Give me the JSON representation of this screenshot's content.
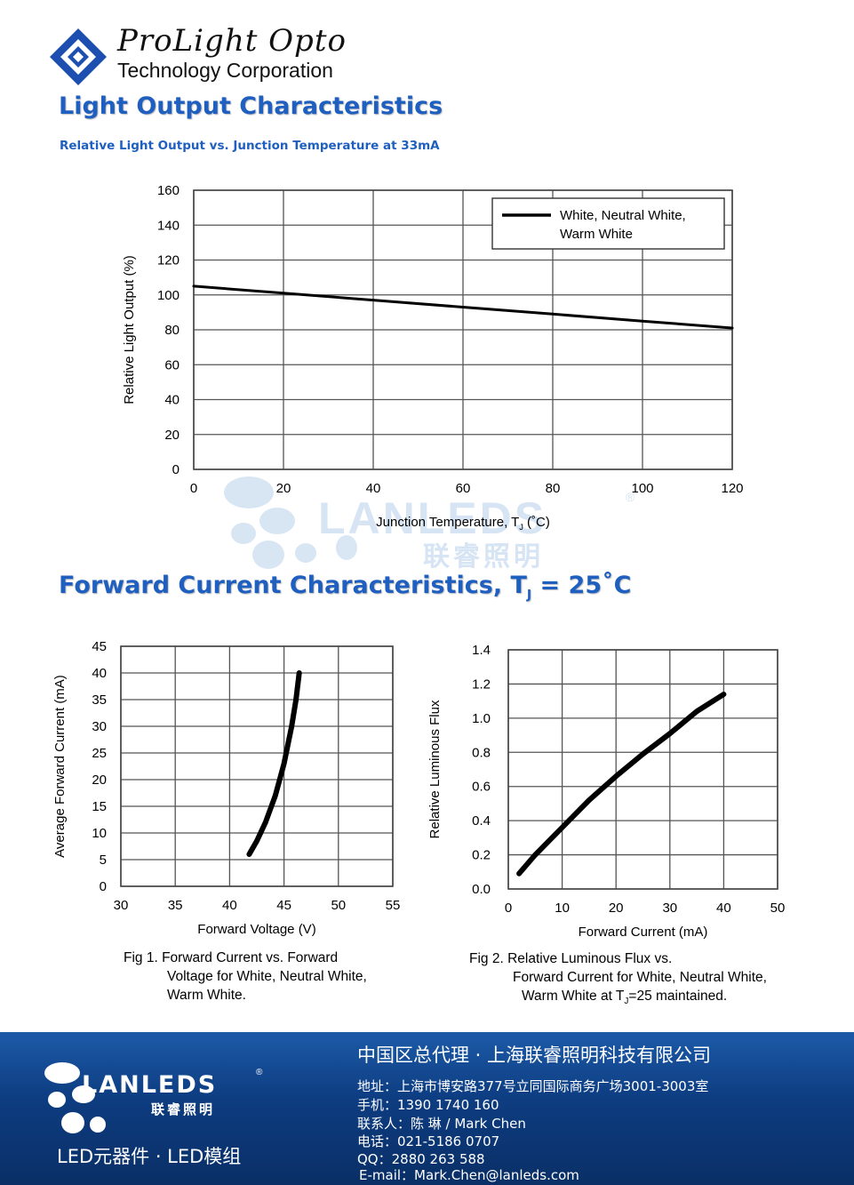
{
  "header": {
    "company_name": "ProLight Opto",
    "company_sub": "Technology Corporation"
  },
  "section1": {
    "title": "Light Output Characteristics",
    "subtitle": "Relative Light Output vs. Junction Temperature at 33mA"
  },
  "section2": {
    "title_main": "Forward Current Characteristics, T",
    "title_sub": "J",
    "title_tail": " = 25˚C"
  },
  "fig1_caption": {
    "line1": "Fig 1. Forward Current vs. Forward",
    "line2": "Voltage for White, Neutral White,",
    "line3": "Warm White."
  },
  "fig2_caption": {
    "line1": "Fig 2. Relative Luminous Flux vs.",
    "line2": "Forward Current for White, Neutral White,",
    "line3_a": "Warm White at T",
    "line3_sub": "J",
    "line3_b": "=25 maintained."
  },
  "watermark": {
    "brand": "LANLEDS",
    "brand_cn": "联睿照明",
    "reg": "®"
  },
  "footer": {
    "brand": "LANLEDS",
    "brand_cn": "联睿照明",
    "reg": "®",
    "tagline": "LED元器件 · LED模组",
    "title": "中国区总代理 · 上海联睿照明科技有限公司",
    "address": "地址：上海市博安路377号立同国际商务广场3001-3003室",
    "mobile": "手机：1390 1740 160",
    "contact": "联系人：陈 琳 / Mark Chen",
    "phone": "电话：021-5186 0707",
    "qq": "QQ：2880 263 588",
    "email": "E-mail：Mark.Chen@lanleds.com"
  },
  "colors": {
    "heading_blue": "#1f5fc0",
    "footer_blue": "#0d3c80",
    "curve": "#000000",
    "grid": "#555555"
  },
  "chart_data": [
    {
      "type": "line",
      "title": "",
      "xlabel_main": "Junction Temperature, T",
      "xlabel_sub": "J",
      "xlabel_tail": " (˚C)",
      "ylabel": "Relative Light Output (%)",
      "xlim": [
        0,
        120
      ],
      "ylim": [
        0,
        160
      ],
      "xticks": [
        "0",
        "20",
        "40",
        "60",
        "80",
        "100",
        "120"
      ],
      "yticks": [
        "0",
        "20",
        "40",
        "60",
        "80",
        "100",
        "120",
        "140",
        "160"
      ],
      "grid": true,
      "legend_position": "top-right",
      "legend_line1": "White, Neutral White,",
      "legend_line2": "Warm White",
      "series": [
        {
          "name": "White, Neutral White, Warm White",
          "x": [
            0,
            20,
            40,
            60,
            80,
            100,
            120
          ],
          "y": [
            105,
            101,
            97,
            93,
            89,
            85,
            81
          ]
        }
      ]
    },
    {
      "type": "line",
      "title": "",
      "xlabel": "Forward Voltage (V)",
      "ylabel": "Average Forward Current (mA)",
      "xlim": [
        30,
        55
      ],
      "ylim": [
        0,
        45
      ],
      "xticks": [
        "30",
        "35",
        "40",
        "45",
        "50",
        "55"
      ],
      "yticks": [
        "0",
        "5",
        "10",
        "15",
        "20",
        "25",
        "30",
        "35",
        "40",
        "45"
      ],
      "grid": true,
      "series": [
        {
          "x": [
            41.8,
            42.5,
            43.3,
            44.2,
            45.0,
            45.7,
            46.1,
            46.4
          ],
          "y": [
            6,
            8.5,
            12,
            17,
            23,
            30,
            35,
            40
          ]
        }
      ]
    },
    {
      "type": "line",
      "title": "",
      "xlabel": "Forward Current (mA)",
      "ylabel": "Relative Luminous Flux",
      "xlim": [
        0,
        50
      ],
      "ylim": [
        0.0,
        1.4
      ],
      "xticks": [
        "0",
        "10",
        "20",
        "30",
        "40",
        "50"
      ],
      "yticks": [
        "0.0",
        "0.2",
        "0.4",
        "0.6",
        "0.8",
        "1.0",
        "1.2",
        "1.4"
      ],
      "grid": true,
      "series": [
        {
          "x": [
            2,
            5,
            10,
            15,
            20,
            25,
            30,
            35,
            40
          ],
          "y": [
            0.09,
            0.2,
            0.36,
            0.52,
            0.66,
            0.79,
            0.91,
            1.04,
            1.14
          ]
        }
      ]
    }
  ]
}
